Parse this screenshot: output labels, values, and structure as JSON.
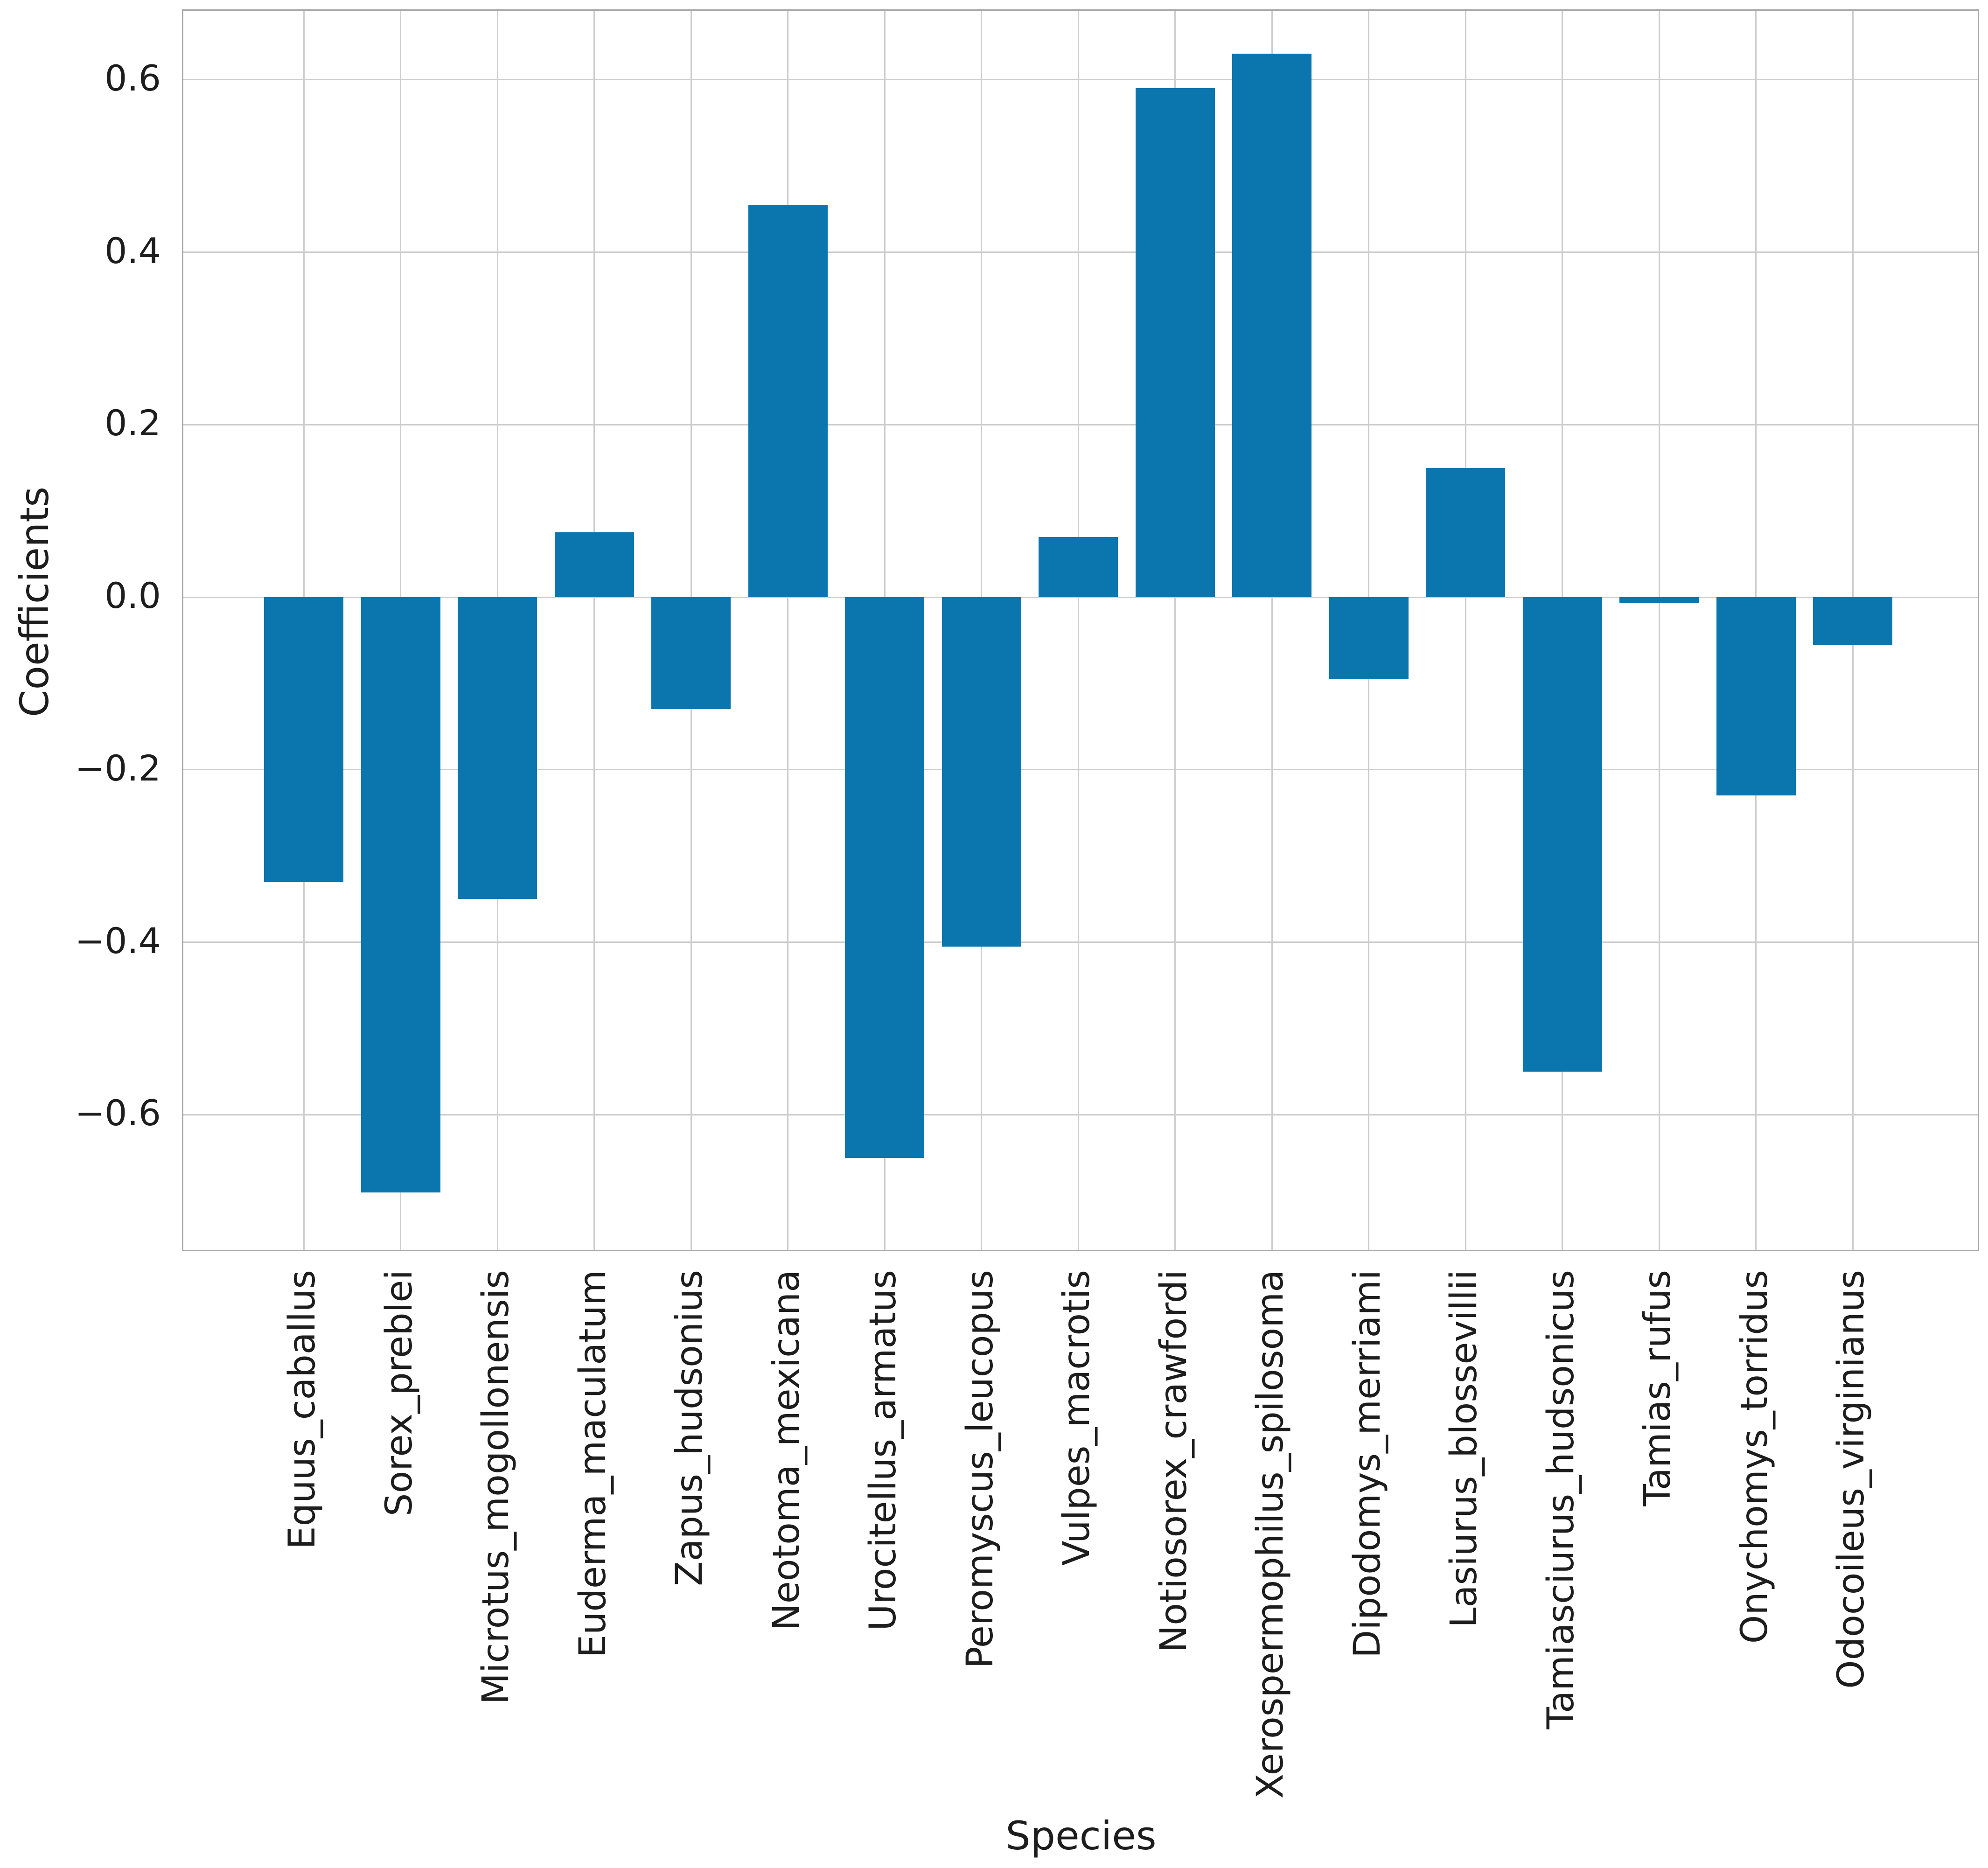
{
  "figure": {
    "background_color": "#ffffff",
    "text_color": "#1d1d1d"
  },
  "chart_data": {
    "type": "bar",
    "title": "",
    "xlabel": "Species",
    "ylabel": "Coefficients",
    "categories": [
      "Equus_caballus",
      "Sorex_preblei",
      "Microtus_mogollonensis",
      "Euderma_maculatum",
      "Zapus_hudsonius",
      "Neotoma_mexicana",
      "Urocitellus_armatus",
      "Peromyscus_leucopus",
      "Vulpes_macrotis",
      "Notiosorex_crawfordi",
      "Xerospermophilus_spilosoma",
      "Dipodomys_merriami",
      "Lasiurus_blossevillii",
      "Tamiasciurus_hudsonicus",
      "Tamias_rufus",
      "Onychomys_torridus",
      "Odocoileus_virginianus"
    ],
    "values": [
      -0.33,
      -0.69,
      -0.35,
      0.075,
      -0.13,
      0.455,
      -0.65,
      -0.405,
      0.07,
      0.59,
      0.63,
      -0.095,
      0.15,
      -0.55,
      -0.007,
      -0.23,
      -0.055
    ],
    "bar_color": "#0b75ad",
    "ylim": [
      -0.76,
      0.68
    ],
    "yticks": [
      0.6,
      0.4,
      0.2,
      0.0,
      -0.2,
      -0.4,
      -0.6
    ],
    "ytick_labels": [
      "0.6",
      "0.4",
      "0.2",
      "0.0",
      "−0.2",
      "−0.4",
      "−0.6"
    ],
    "grid": true,
    "grid_color": "#cdcdcd",
    "spine_color": "#a8a8a8",
    "legend_position": "none"
  }
}
